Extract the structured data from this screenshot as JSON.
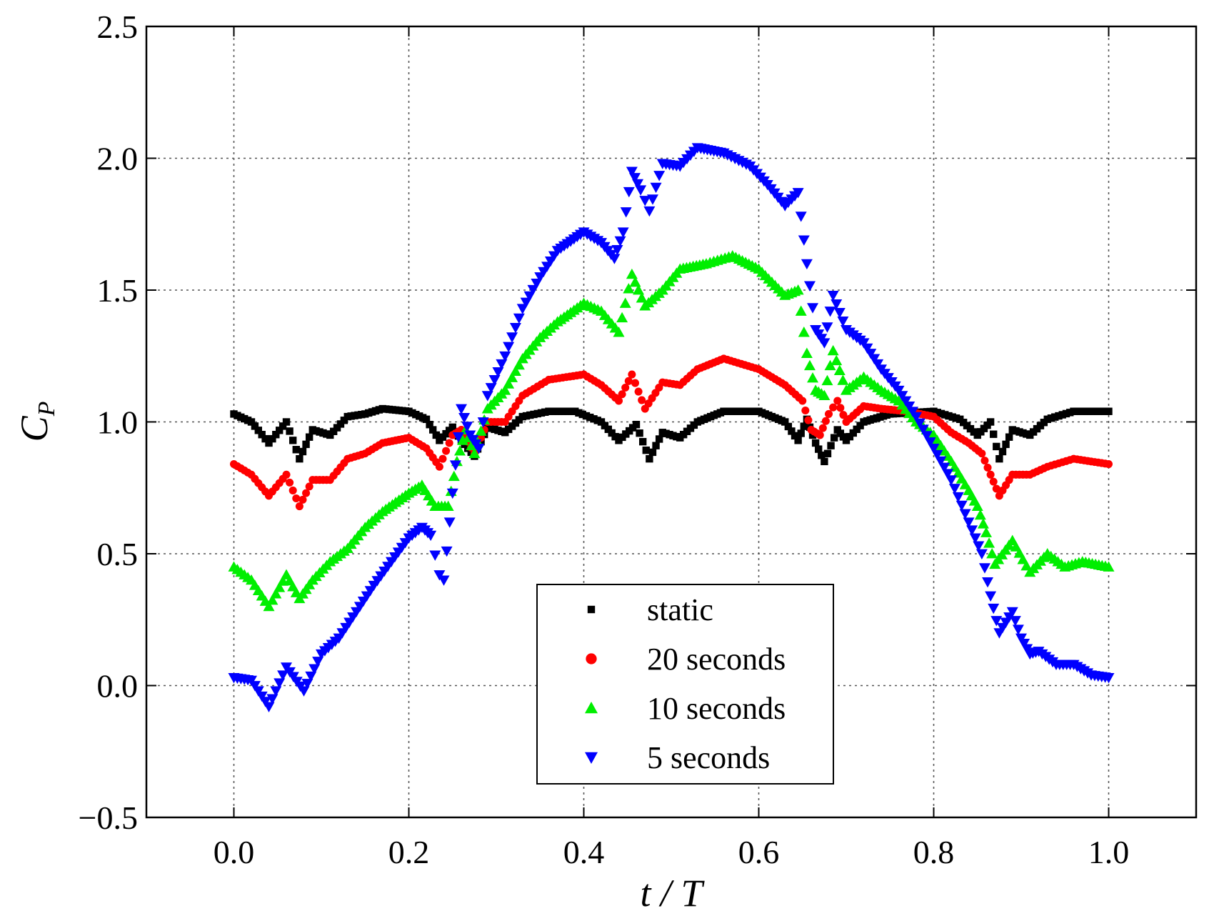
{
  "chart_data": {
    "type": "scatter",
    "xlabel": "t / T",
    "ylabel": "C_P",
    "ylabel_main": "C",
    "ylabel_sub": "P",
    "xlim": [
      -0.1,
      1.1
    ],
    "ylim": [
      -0.5,
      2.5
    ],
    "xticks": [
      0.0,
      0.2,
      0.4,
      0.6,
      0.8,
      1.0
    ],
    "yticks": [
      -0.5,
      0.0,
      0.5,
      1.0,
      1.5,
      2.0,
      2.5
    ],
    "xtick_labels": [
      "0.0",
      "0.2",
      "0.4",
      "0.6",
      "0.8",
      "1.0"
    ],
    "ytick_labels": [
      "−0.5",
      "0.0",
      "0.5",
      "1.0",
      "1.5",
      "2.0",
      "2.5"
    ],
    "grid": true,
    "legend_position": "bottom-center",
    "series": [
      {
        "name": "static",
        "color": "#000000",
        "marker": "square",
        "points": [
          [
            0.0,
            1.03
          ],
          [
            0.02,
            1.0
          ],
          [
            0.04,
            0.92
          ],
          [
            0.06,
            1.0
          ],
          [
            0.075,
            0.86
          ],
          [
            0.09,
            0.97
          ],
          [
            0.11,
            0.95
          ],
          [
            0.13,
            1.02
          ],
          [
            0.15,
            1.03
          ],
          [
            0.17,
            1.05
          ],
          [
            0.2,
            1.04
          ],
          [
            0.22,
            1.01
          ],
          [
            0.235,
            0.93
          ],
          [
            0.25,
            0.98
          ],
          [
            0.26,
            0.93
          ],
          [
            0.275,
            0.87
          ],
          [
            0.29,
            0.98
          ],
          [
            0.31,
            0.96
          ],
          [
            0.33,
            1.02
          ],
          [
            0.36,
            1.04
          ],
          [
            0.39,
            1.04
          ],
          [
            0.42,
            1.0
          ],
          [
            0.44,
            0.93
          ],
          [
            0.46,
            0.99
          ],
          [
            0.475,
            0.86
          ],
          [
            0.49,
            0.96
          ],
          [
            0.51,
            0.94
          ],
          [
            0.53,
            1.0
          ],
          [
            0.56,
            1.04
          ],
          [
            0.6,
            1.04
          ],
          [
            0.63,
            1.0
          ],
          [
            0.645,
            0.93
          ],
          [
            0.655,
            1.01
          ],
          [
            0.665,
            0.92
          ],
          [
            0.675,
            0.85
          ],
          [
            0.69,
            0.97
          ],
          [
            0.7,
            0.93
          ],
          [
            0.72,
            1.0
          ],
          [
            0.75,
            1.03
          ],
          [
            0.8,
            1.04
          ],
          [
            0.83,
            1.01
          ],
          [
            0.85,
            0.95
          ],
          [
            0.865,
            1.0
          ],
          [
            0.875,
            0.86
          ],
          [
            0.89,
            0.97
          ],
          [
            0.91,
            0.95
          ],
          [
            0.93,
            1.01
          ],
          [
            0.96,
            1.04
          ],
          [
            1.0,
            1.04
          ]
        ]
      },
      {
        "name": "20 seconds",
        "color": "#ff0000",
        "marker": "circle",
        "points": [
          [
            0.0,
            0.84
          ],
          [
            0.02,
            0.8
          ],
          [
            0.04,
            0.72
          ],
          [
            0.06,
            0.8
          ],
          [
            0.075,
            0.68
          ],
          [
            0.09,
            0.78
          ],
          [
            0.11,
            0.78
          ],
          [
            0.13,
            0.86
          ],
          [
            0.15,
            0.88
          ],
          [
            0.17,
            0.92
          ],
          [
            0.2,
            0.94
          ],
          [
            0.22,
            0.9
          ],
          [
            0.235,
            0.83
          ],
          [
            0.25,
            0.95
          ],
          [
            0.26,
            0.97
          ],
          [
            0.275,
            0.88
          ],
          [
            0.29,
            1.0
          ],
          [
            0.31,
            1.0
          ],
          [
            0.33,
            1.1
          ],
          [
            0.36,
            1.16
          ],
          [
            0.4,
            1.18
          ],
          [
            0.42,
            1.14
          ],
          [
            0.44,
            1.08
          ],
          [
            0.455,
            1.18
          ],
          [
            0.47,
            1.05
          ],
          [
            0.49,
            1.15
          ],
          [
            0.51,
            1.14
          ],
          [
            0.53,
            1.2
          ],
          [
            0.56,
            1.24
          ],
          [
            0.6,
            1.2
          ],
          [
            0.63,
            1.14
          ],
          [
            0.65,
            1.08
          ],
          [
            0.66,
            0.97
          ],
          [
            0.67,
            0.95
          ],
          [
            0.68,
            1.03
          ],
          [
            0.69,
            1.08
          ],
          [
            0.7,
            1.0
          ],
          [
            0.72,
            1.06
          ],
          [
            0.74,
            1.05
          ],
          [
            0.77,
            1.04
          ],
          [
            0.8,
            1.02
          ],
          [
            0.82,
            0.96
          ],
          [
            0.84,
            0.92
          ],
          [
            0.855,
            0.88
          ],
          [
            0.865,
            0.8
          ],
          [
            0.875,
            0.72
          ],
          [
            0.89,
            0.8
          ],
          [
            0.91,
            0.8
          ],
          [
            0.93,
            0.83
          ],
          [
            0.96,
            0.86
          ],
          [
            1.0,
            0.84
          ]
        ]
      },
      {
        "name": "10 seconds",
        "color": "#00ee00",
        "marker": "triangle-up",
        "points": [
          [
            0.0,
            0.45
          ],
          [
            0.02,
            0.4
          ],
          [
            0.04,
            0.3
          ],
          [
            0.06,
            0.42
          ],
          [
            0.075,
            0.33
          ],
          [
            0.09,
            0.4
          ],
          [
            0.11,
            0.47
          ],
          [
            0.13,
            0.52
          ],
          [
            0.15,
            0.6
          ],
          [
            0.17,
            0.66
          ],
          [
            0.2,
            0.73
          ],
          [
            0.215,
            0.76
          ],
          [
            0.23,
            0.68
          ],
          [
            0.245,
            0.68
          ],
          [
            0.255,
            0.85
          ],
          [
            0.265,
            0.97
          ],
          [
            0.275,
            0.88
          ],
          [
            0.29,
            1.05
          ],
          [
            0.31,
            1.12
          ],
          [
            0.33,
            1.24
          ],
          [
            0.35,
            1.32
          ],
          [
            0.37,
            1.38
          ],
          [
            0.4,
            1.45
          ],
          [
            0.42,
            1.42
          ],
          [
            0.44,
            1.34
          ],
          [
            0.455,
            1.56
          ],
          [
            0.47,
            1.44
          ],
          [
            0.49,
            1.5
          ],
          [
            0.51,
            1.58
          ],
          [
            0.54,
            1.6
          ],
          [
            0.57,
            1.63
          ],
          [
            0.6,
            1.58
          ],
          [
            0.63,
            1.48
          ],
          [
            0.645,
            1.5
          ],
          [
            0.655,
            1.26
          ],
          [
            0.665,
            1.12
          ],
          [
            0.675,
            1.1
          ],
          [
            0.685,
            1.27
          ],
          [
            0.7,
            1.12
          ],
          [
            0.72,
            1.17
          ],
          [
            0.74,
            1.12
          ],
          [
            0.76,
            1.08
          ],
          [
            0.78,
            1.0
          ],
          [
            0.8,
            0.95
          ],
          [
            0.82,
            0.85
          ],
          [
            0.84,
            0.74
          ],
          [
            0.85,
            0.68
          ],
          [
            0.86,
            0.58
          ],
          [
            0.87,
            0.46
          ],
          [
            0.89,
            0.55
          ],
          [
            0.91,
            0.43
          ],
          [
            0.93,
            0.5
          ],
          [
            0.95,
            0.45
          ],
          [
            0.97,
            0.47
          ],
          [
            1.0,
            0.45
          ]
        ]
      },
      {
        "name": "5 seconds",
        "color": "#0000ff",
        "marker": "triangle-down",
        "points": [
          [
            0.0,
            0.03
          ],
          [
            0.02,
            0.02
          ],
          [
            0.04,
            -0.08
          ],
          [
            0.06,
            0.07
          ],
          [
            0.08,
            -0.02
          ],
          [
            0.1,
            0.12
          ],
          [
            0.12,
            0.18
          ],
          [
            0.14,
            0.28
          ],
          [
            0.16,
            0.38
          ],
          [
            0.18,
            0.47
          ],
          [
            0.2,
            0.56
          ],
          [
            0.215,
            0.6
          ],
          [
            0.225,
            0.57
          ],
          [
            0.235,
            0.42
          ],
          [
            0.24,
            0.4
          ],
          [
            0.25,
            0.73
          ],
          [
            0.26,
            1.05
          ],
          [
            0.27,
            0.95
          ],
          [
            0.28,
            0.9
          ],
          [
            0.29,
            1.1
          ],
          [
            0.31,
            1.25
          ],
          [
            0.33,
            1.43
          ],
          [
            0.35,
            1.55
          ],
          [
            0.37,
            1.65
          ],
          [
            0.4,
            1.72
          ],
          [
            0.42,
            1.68
          ],
          [
            0.435,
            1.62
          ],
          [
            0.445,
            1.72
          ],
          [
            0.455,
            1.95
          ],
          [
            0.465,
            1.88
          ],
          [
            0.475,
            1.8
          ],
          [
            0.49,
            1.98
          ],
          [
            0.51,
            1.97
          ],
          [
            0.53,
            2.04
          ],
          [
            0.56,
            2.02
          ],
          [
            0.59,
            1.97
          ],
          [
            0.61,
            1.9
          ],
          [
            0.63,
            1.82
          ],
          [
            0.645,
            1.87
          ],
          [
            0.655,
            1.6
          ],
          [
            0.665,
            1.35
          ],
          [
            0.675,
            1.3
          ],
          [
            0.685,
            1.48
          ],
          [
            0.7,
            1.35
          ],
          [
            0.72,
            1.3
          ],
          [
            0.74,
            1.2
          ],
          [
            0.76,
            1.12
          ],
          [
            0.78,
            1.02
          ],
          [
            0.8,
            0.9
          ],
          [
            0.82,
            0.78
          ],
          [
            0.84,
            0.62
          ],
          [
            0.855,
            0.5
          ],
          [
            0.865,
            0.34
          ],
          [
            0.875,
            0.2
          ],
          [
            0.89,
            0.28
          ],
          [
            0.9,
            0.18
          ],
          [
            0.91,
            0.12
          ],
          [
            0.92,
            0.13
          ],
          [
            0.94,
            0.08
          ],
          [
            0.96,
            0.08
          ],
          [
            0.98,
            0.04
          ],
          [
            1.0,
            0.03
          ]
        ]
      }
    ]
  }
}
